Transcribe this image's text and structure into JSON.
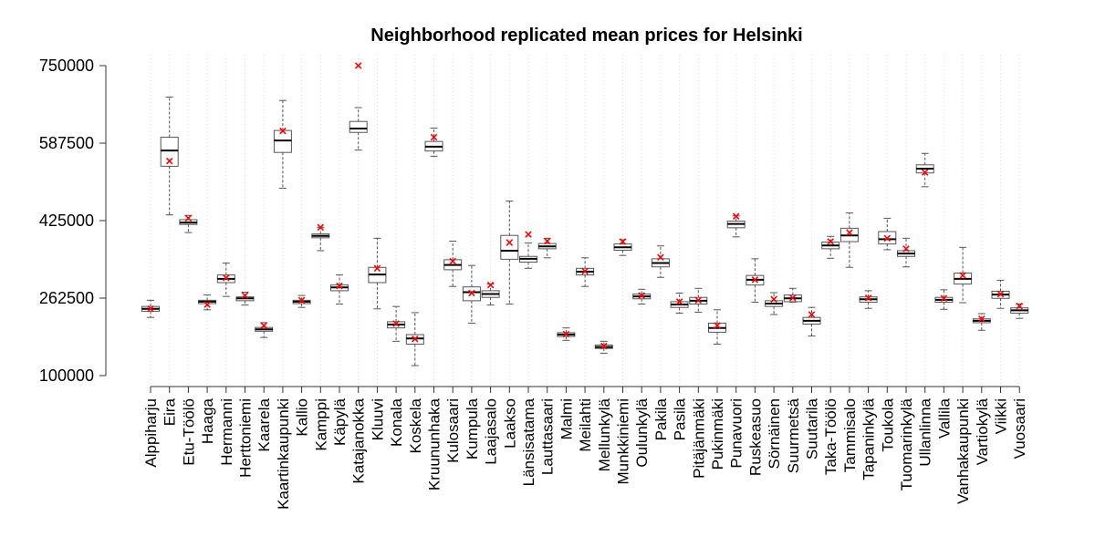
{
  "chart_data": {
    "type": "boxplot",
    "title": "Neighborhood replicated mean prices for Helsinki",
    "xlabel": "",
    "ylabel": "",
    "ylim": [
      100000,
      750000
    ],
    "yticks": [
      100000,
      262500,
      425000,
      587500,
      750000
    ],
    "ytick_labels": [
      "100000",
      "262500",
      "425000",
      "587500",
      "750000"
    ],
    "grid": "vertical dotted",
    "colors": {
      "box": "#555555",
      "median": "#000000",
      "mean_marker": "#ff0000",
      "grid": "#d9d9d9"
    },
    "categories": [
      "Alppiharju",
      "Eira",
      "Etu-Töölö",
      "Haaga",
      "Hermanni",
      "Herttoniemi",
      "Kaarela",
      "Kaartinkaupunki",
      "Kallio",
      "Kamppi",
      "Käpylä",
      "Katajanokka",
      "Kluuvi",
      "Konala",
      "Koskela",
      "Kruununhaka",
      "Kulosaari",
      "Kumpula",
      "Laajasalo",
      "Laakso",
      "Länsisatama",
      "Lauttasaari",
      "Malmi",
      "Meilahti",
      "Mellunkylä",
      "Munkkiniemi",
      "Oulunkylä",
      "Pakila",
      "Pasila",
      "Pitäjänmäki",
      "Pukinmäki",
      "Punavuori",
      "Ruskeasuo",
      "Sörnäinen",
      "Suurmetsä",
      "Suutarila",
      "Taka-Töölö",
      "Tammisalo",
      "Tapaninkylä",
      "Toukola",
      "Tuomarinkylä",
      "Ullanlinna",
      "Vallila",
      "Vanhakaupunki",
      "Vartiokylä",
      "Viikki",
      "Vuosaari"
    ],
    "boxes": [
      {
        "min": 222000,
        "q1": 235000,
        "median": 240000,
        "q3": 245000,
        "max": 258000,
        "mean": 240000
      },
      {
        "min": 437000,
        "q1": 539000,
        "median": 572000,
        "q3": 600000,
        "max": 684000,
        "mean": 550000
      },
      {
        "min": 400000,
        "q1": 417000,
        "median": 421000,
        "q3": 427000,
        "max": 436000,
        "mean": 430000
      },
      {
        "min": 238000,
        "q1": 251000,
        "median": 255000,
        "q3": 258000,
        "max": 269000,
        "mean": 249000
      },
      {
        "min": 266000,
        "q1": 295000,
        "median": 303000,
        "q3": 311000,
        "max": 336000,
        "mean": 305000
      },
      {
        "min": 248000,
        "q1": 257000,
        "median": 262000,
        "q3": 265000,
        "max": 275000,
        "mean": 268000
      },
      {
        "min": 180000,
        "q1": 193000,
        "median": 197000,
        "q3": 201000,
        "max": 211000,
        "mean": 205000
      },
      {
        "min": 493000,
        "q1": 568000,
        "median": 593000,
        "q3": 614000,
        "max": 677000,
        "mean": 613000
      },
      {
        "min": 243000,
        "q1": 251000,
        "median": 255000,
        "q3": 258000,
        "max": 268000,
        "mean": 258000
      },
      {
        "min": 362000,
        "q1": 389000,
        "median": 393000,
        "q3": 397000,
        "max": 411000,
        "mean": 411000
      },
      {
        "min": 250000,
        "q1": 278000,
        "median": 285000,
        "q3": 290000,
        "max": 311000,
        "mean": 288000
      },
      {
        "min": 573000,
        "q1": 610000,
        "median": 618000,
        "q3": 633000,
        "max": 662000,
        "mean": 750000
      },
      {
        "min": 240000,
        "q1": 295000,
        "median": 312000,
        "q3": 327000,
        "max": 388000,
        "mean": 325000
      },
      {
        "min": 172000,
        "q1": 200000,
        "median": 207000,
        "q3": 213000,
        "max": 245000,
        "mean": 209000
      },
      {
        "min": 121000,
        "q1": 166000,
        "median": 178000,
        "q3": 186000,
        "max": 232000,
        "mean": 177000
      },
      {
        "min": 560000,
        "q1": 571000,
        "median": 580000,
        "q3": 591000,
        "max": 619000,
        "mean": 600000
      },
      {
        "min": 287000,
        "q1": 322000,
        "median": 332000,
        "q3": 343000,
        "max": 382000,
        "mean": 340000
      },
      {
        "min": 210000,
        "q1": 257000,
        "median": 275000,
        "q3": 286000,
        "max": 331000,
        "mean": 273000
      },
      {
        "min": 248000,
        "q1": 264000,
        "median": 271000,
        "q3": 278000,
        "max": 292000,
        "mean": 290000
      },
      {
        "min": 250000,
        "q1": 344000,
        "median": 362000,
        "q3": 394000,
        "max": 466000,
        "mean": 379000
      },
      {
        "min": 325000,
        "q1": 338000,
        "median": 345000,
        "q3": 350000,
        "max": 378000,
        "mean": 396000
      },
      {
        "min": 347000,
        "q1": 366000,
        "median": 371000,
        "q3": 377000,
        "max": 388000,
        "mean": 382000
      },
      {
        "min": 174000,
        "q1": 182000,
        "median": 186000,
        "q3": 190000,
        "max": 200000,
        "mean": 187000
      },
      {
        "min": 287000,
        "q1": 311000,
        "median": 318000,
        "q3": 325000,
        "max": 347000,
        "mean": 319000
      },
      {
        "min": 147000,
        "q1": 157000,
        "median": 160000,
        "q3": 164000,
        "max": 172000,
        "mean": 162000
      },
      {
        "min": 352000,
        "q1": 363000,
        "median": 369000,
        "q3": 376000,
        "max": 385000,
        "mean": 381000
      },
      {
        "min": 250000,
        "q1": 261000,
        "median": 266000,
        "q3": 271000,
        "max": 281000,
        "mean": 268000
      },
      {
        "min": 306000,
        "q1": 328000,
        "median": 336000,
        "q3": 345000,
        "max": 372000,
        "mean": 348000
      },
      {
        "min": 231000,
        "q1": 243000,
        "median": 249000,
        "q3": 255000,
        "max": 273000,
        "mean": 255000
      },
      {
        "min": 233000,
        "q1": 250000,
        "median": 257000,
        "q3": 264000,
        "max": 283000,
        "mean": 258000
      },
      {
        "min": 166000,
        "q1": 191000,
        "median": 200000,
        "q3": 210000,
        "max": 238000,
        "mean": 205000
      },
      {
        "min": 391000,
        "q1": 410000,
        "median": 418000,
        "q3": 424000,
        "max": 435000,
        "mean": 434000
      },
      {
        "min": 254000,
        "q1": 290000,
        "median": 301000,
        "q3": 310000,
        "max": 345000,
        "mean": 301000
      },
      {
        "min": 228000,
        "q1": 245000,
        "median": 251000,
        "q3": 257000,
        "max": 274000,
        "mean": 260000
      },
      {
        "min": 254000,
        "q1": 255000,
        "median": 262000,
        "q3": 269000,
        "max": 283000,
        "mean": 263000
      },
      {
        "min": 183000,
        "q1": 208000,
        "median": 215000,
        "q3": 222000,
        "max": 243000,
        "mean": 228000
      },
      {
        "min": 346000,
        "q1": 366000,
        "median": 373000,
        "q3": 380000,
        "max": 392000,
        "mean": 381000
      },
      {
        "min": 327000,
        "q1": 381000,
        "median": 394000,
        "q3": 409000,
        "max": 441000,
        "mean": 400000
      },
      {
        "min": 241000,
        "q1": 254000,
        "median": 260000,
        "q3": 265000,
        "max": 278000,
        "mean": 263000
      },
      {
        "min": 364000,
        "q1": 376000,
        "median": 386000,
        "q3": 402000,
        "max": 430000,
        "mean": 388000
      },
      {
        "min": 328000,
        "q1": 350000,
        "median": 356000,
        "q3": 362000,
        "max": 388000,
        "mean": 366000
      },
      {
        "min": 496000,
        "q1": 525000,
        "median": 534000,
        "q3": 542000,
        "max": 566000,
        "mean": 526000
      },
      {
        "min": 239000,
        "q1": 254000,
        "median": 259000,
        "q3": 264000,
        "max": 280000,
        "mean": 262000
      },
      {
        "min": 253000,
        "q1": 292000,
        "median": 303000,
        "q3": 315000,
        "max": 369000,
        "mean": 310000
      },
      {
        "min": 195000,
        "q1": 211000,
        "median": 215000,
        "q3": 219000,
        "max": 230000,
        "mean": 219000
      },
      {
        "min": 241000,
        "q1": 262000,
        "median": 270000,
        "q3": 277000,
        "max": 300000,
        "mean": 271000
      },
      {
        "min": 220000,
        "q1": 231000,
        "median": 237000,
        "q3": 242000,
        "max": 250000,
        "mean": 246000
      }
    ]
  }
}
